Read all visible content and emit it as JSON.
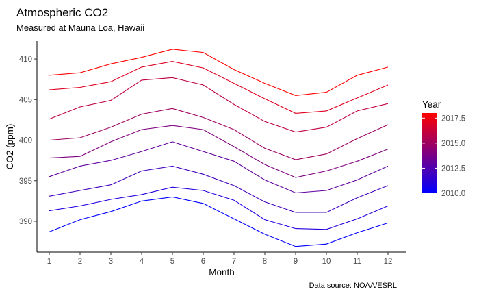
{
  "chart_data": {
    "type": "line",
    "title": "Atmospheric CO2",
    "subtitle": "Measured at Mauna Loa, Hawaii",
    "xlabel": "Month",
    "ylabel": "CO2 (ppm)",
    "caption": "Data source: NOAA/ESRL",
    "x": [
      1,
      2,
      3,
      4,
      5,
      6,
      7,
      8,
      9,
      10,
      11,
      12
    ],
    "xticks": [
      "1",
      "2",
      "3",
      "4",
      "5",
      "6",
      "7",
      "8",
      "9",
      "10",
      "11",
      "12"
    ],
    "xlim": [
      0.6,
      12.6
    ],
    "ylim": [
      386.2,
      412.2
    ],
    "yticks": [
      "390",
      "395",
      "400",
      "405",
      "410"
    ],
    "grid": false,
    "legend": {
      "title": "Year",
      "position": "right",
      "type": "colorbar",
      "range": [
        2010,
        2018
      ],
      "labels": [
        "2010.0",
        "2012.5",
        "2015.0",
        "2017.5"
      ],
      "color_low": "#0000ff",
      "color_high": "#ff0000"
    },
    "series": [
      {
        "year": 2010,
        "color": "#0000ff",
        "values": [
          388.7,
          390.2,
          391.2,
          392.5,
          393.0,
          392.2,
          390.3,
          388.4,
          386.9,
          387.2,
          388.6,
          389.8
        ]
      },
      {
        "year": 2011,
        "color": "#2000df",
        "values": [
          391.3,
          391.9,
          392.7,
          393.3,
          394.2,
          393.8,
          392.6,
          390.2,
          389.1,
          389.0,
          390.3,
          391.9
        ]
      },
      {
        "year": 2012,
        "color": "#4000bf",
        "values": [
          393.1,
          393.8,
          394.5,
          396.2,
          396.8,
          395.8,
          394.4,
          392.4,
          391.1,
          391.1,
          392.9,
          394.4
        ]
      },
      {
        "year": 2013,
        "color": "#60009f",
        "values": [
          395.5,
          396.8,
          397.5,
          398.6,
          399.8,
          398.6,
          397.4,
          395.1,
          393.5,
          393.8,
          395.1,
          396.8
        ]
      },
      {
        "year": 2014,
        "color": "#80007f",
        "values": [
          397.8,
          398.0,
          399.8,
          401.3,
          401.8,
          401.3,
          399.2,
          397.0,
          395.4,
          396.2,
          397.4,
          398.9
        ]
      },
      {
        "year": 2015,
        "color": "#9f0060",
        "values": [
          400.0,
          400.3,
          401.6,
          403.2,
          403.9,
          402.8,
          401.3,
          399.0,
          397.6,
          398.3,
          400.2,
          401.9
        ]
      },
      {
        "year": 2016,
        "color": "#bf0040",
        "values": [
          402.6,
          404.1,
          404.9,
          407.4,
          407.7,
          406.8,
          404.4,
          402.3,
          401.0,
          401.6,
          403.6,
          404.5
        ]
      },
      {
        "year": 2017,
        "color": "#df0020",
        "values": [
          406.2,
          406.5,
          407.2,
          409.0,
          409.7,
          408.9,
          407.0,
          405.1,
          403.3,
          403.6,
          405.2,
          406.8
        ]
      },
      {
        "year": 2018,
        "color": "#ff0000",
        "values": [
          408.0,
          408.3,
          409.4,
          410.2,
          411.2,
          410.8,
          408.7,
          407.0,
          405.5,
          405.9,
          408.0,
          409.0
        ]
      }
    ]
  }
}
